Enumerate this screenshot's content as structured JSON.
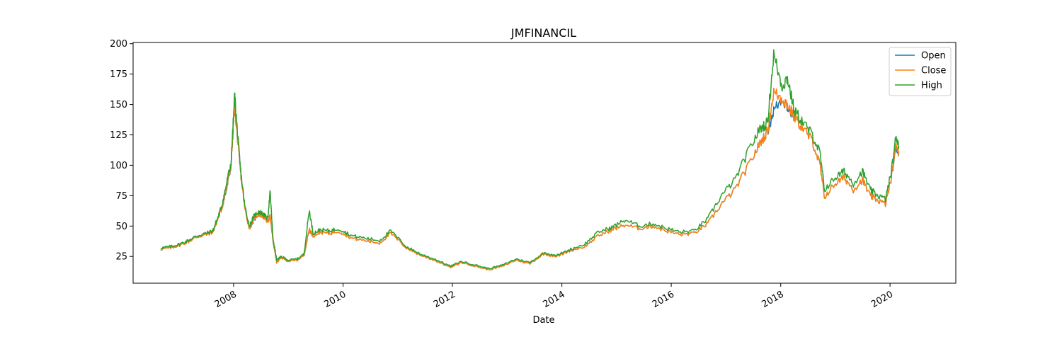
{
  "chart_data": {
    "type": "line",
    "title": "JMFINANCIL",
    "xlabel": "Date",
    "ylabel": "",
    "xlim": [
      "2006-03-01",
      "2021-03-15"
    ],
    "ylim": [
      3,
      201
    ],
    "x_ticks": [
      "2008-01-01",
      "2010-01-01",
      "2012-01-01",
      "2014-01-01",
      "2016-01-01",
      "2018-01-01",
      "2020-01-01"
    ],
    "x_tick_labels": [
      "2008",
      "2010",
      "2012",
      "2014",
      "2016",
      "2018",
      "2020"
    ],
    "y_ticks": [
      25,
      50,
      75,
      100,
      125,
      150,
      175,
      200
    ],
    "y_tick_labels": [
      "25",
      "50",
      "75",
      "100",
      "125",
      "150",
      "175",
      "200"
    ],
    "grid": false,
    "legend": "top-right",
    "x": [
      "2006-09-01",
      "2006-11-01",
      "2007-01-01",
      "2007-03-01",
      "2007-05-01",
      "2007-07-01",
      "2007-08-15",
      "2007-09-15",
      "2007-10-15",
      "2007-11-15",
      "2007-12-15",
      "2008-01-08",
      "2008-01-25",
      "2008-02-15",
      "2008-03-15",
      "2008-04-15",
      "2008-05-15",
      "2008-06-15",
      "2008-07-15",
      "2008-08-15",
      "2008-09-01",
      "2008-09-20",
      "2008-10-15",
      "2008-11-15",
      "2009-01-01",
      "2009-03-01",
      "2009-04-15",
      "2009-05-20",
      "2009-06-15",
      "2009-08-01",
      "2009-10-01",
      "2009-12-01",
      "2010-03-01",
      "2010-06-01",
      "2010-09-01",
      "2010-11-15",
      "2011-03-01",
      "2011-06-01",
      "2011-09-01",
      "2011-12-20",
      "2012-03-01",
      "2012-06-01",
      "2012-09-01",
      "2012-12-01",
      "2013-03-01",
      "2013-06-01",
      "2013-09-01",
      "2013-12-01",
      "2014-03-01",
      "2014-06-01",
      "2014-09-01",
      "2014-12-01",
      "2015-03-01",
      "2015-06-01",
      "2015-09-01",
      "2015-12-01",
      "2016-03-01",
      "2016-06-01",
      "2016-09-01",
      "2016-12-01",
      "2017-03-01",
      "2017-06-01",
      "2017-08-15",
      "2017-10-05",
      "2017-11-15",
      "2018-01-10",
      "2018-02-15",
      "2018-04-01",
      "2018-06-01",
      "2018-08-01",
      "2018-09-20",
      "2018-10-20",
      "2019-01-01",
      "2019-03-01",
      "2019-05-01",
      "2019-07-01",
      "2019-08-20",
      "2019-10-01",
      "2019-12-01",
      "2020-01-10",
      "2020-02-10",
      "2020-02-28"
    ],
    "series": [
      {
        "name": "Open",
        "color": "#1f77b4",
        "values": [
          31,
          32,
          34,
          37,
          41,
          43,
          45,
          55,
          65,
          80,
          100,
          150,
          125,
          96,
          65,
          48,
          55,
          60,
          58,
          54,
          58,
          38,
          20,
          24,
          21,
          22,
          26,
          47,
          42,
          45,
          44,
          46,
          40,
          38,
          36,
          44,
          32,
          26,
          22,
          16,
          20,
          17,
          14,
          17,
          22,
          19,
          27,
          25,
          30,
          33,
          42,
          47,
          51,
          48,
          50,
          46,
          43,
          44,
          52,
          68,
          80,
          100,
          118,
          128,
          145,
          155,
          148,
          140,
          130,
          120,
          100,
          74,
          85,
          90,
          80,
          88,
          75,
          72,
          68,
          90,
          115,
          110
        ]
      },
      {
        "name": "Close",
        "color": "#ff7f0e",
        "values": [
          31,
          32,
          34,
          37,
          41,
          43,
          45,
          55,
          65,
          82,
          100,
          150,
          125,
          96,
          65,
          48,
          56,
          60,
          58,
          54,
          58,
          38,
          20,
          24,
          21,
          22,
          26,
          48,
          42,
          45,
          44,
          46,
          40,
          38,
          36,
          44,
          32,
          26,
          22,
          16,
          20,
          17,
          14,
          17,
          22,
          19,
          27,
          25,
          30,
          33,
          42,
          47,
          51,
          48,
          50,
          46,
          43,
          44,
          52,
          68,
          80,
          100,
          118,
          128,
          160,
          155,
          150,
          140,
          130,
          120,
          100,
          74,
          85,
          90,
          80,
          88,
          75,
          72,
          68,
          90,
          118,
          110
        ]
      },
      {
        "name": "High",
        "color": "#2ca02c",
        "values": [
          32,
          33,
          35,
          38,
          42,
          44,
          46,
          56,
          67,
          85,
          102,
          158,
          130,
          98,
          67,
          50,
          58,
          62,
          60,
          56,
          78,
          40,
          22,
          25,
          22,
          23,
          27,
          63,
          44,
          47,
          46,
          48,
          42,
          40,
          38,
          46,
          33,
          27,
          23,
          17,
          21,
          18,
          15,
          18,
          23,
          20,
          28,
          26,
          31,
          35,
          45,
          49,
          55,
          50,
          52,
          48,
          45,
          46,
          56,
          75,
          88,
          112,
          130,
          135,
          191,
          165,
          172,
          145,
          135,
          125,
          110,
          80,
          90,
          95,
          85,
          95,
          80,
          76,
          72,
          95,
          124,
          116
        ]
      }
    ]
  }
}
